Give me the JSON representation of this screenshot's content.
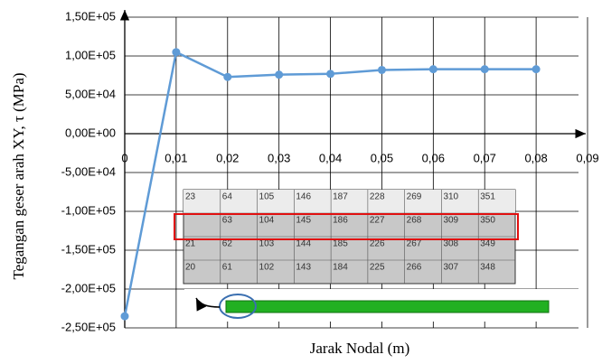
{
  "chart_data": {
    "type": "line",
    "x_label": "Jarak Nodal (m)",
    "y_label": "Tegangan geser arah XY, τ (MPa)",
    "x": [
      0,
      0.01,
      0.02,
      0.03,
      0.04,
      0.05,
      0.06,
      0.07,
      0.08
    ],
    "series": [
      {
        "color": "#5f9bd6",
        "values": [
          -235000,
          105000,
          73000,
          76000,
          77000,
          82000,
          83000,
          83000,
          83000
        ]
      }
    ],
    "xlim": [
      0,
      0.09
    ],
    "xticks": [
      0,
      {
        "value": 0.01,
        "label": "0,01"
      },
      {
        "value": 0.02,
        "label": "0,02"
      },
      {
        "value": 0.03,
        "label": "0,03"
      },
      {
        "value": 0.04,
        "label": "0,04"
      },
      {
        "value": 0.05,
        "label": "0,05"
      },
      {
        "value": 0.06,
        "label": "0,06"
      },
      {
        "value": 0.07,
        "label": "0,07"
      },
      {
        "value": 0.08,
        "label": "0,08"
      },
      {
        "value": 0.09,
        "label": "0,09"
      }
    ],
    "ylim": [
      -250000,
      150000
    ],
    "yticks": [
      {
        "value": 150000,
        "label": "1,50E+05"
      },
      {
        "value": 100000,
        "label": "1,00E+05"
      },
      {
        "value": 50000,
        "label": "5,00E+04"
      },
      {
        "value": 0,
        "label": "0,00E+00"
      },
      {
        "value": -50000,
        "label": "-5,00E+04"
      },
      {
        "value": -100000,
        "label": "-1,00E+05"
      },
      {
        "value": -150000,
        "label": "-1,50E+05"
      },
      {
        "value": -200000,
        "label": "-2,00E+05"
      },
      {
        "value": -250000,
        "label": "-2,50E+05"
      }
    ],
    "grid": true
  },
  "inset": {
    "rows": [
      [
        "23",
        "64",
        "105",
        "146",
        "187",
        "228",
        "269",
        "310",
        "351"
      ],
      [
        "63",
        "104",
        "145",
        "186",
        "227",
        "268",
        "309",
        "350"
      ],
      [
        "21",
        "62",
        "103",
        "144",
        "185",
        "226",
        "267",
        "308",
        "349"
      ],
      [
        "20",
        "61",
        "102",
        "143",
        "184",
        "225",
        "266",
        "307",
        "348"
      ]
    ]
  }
}
